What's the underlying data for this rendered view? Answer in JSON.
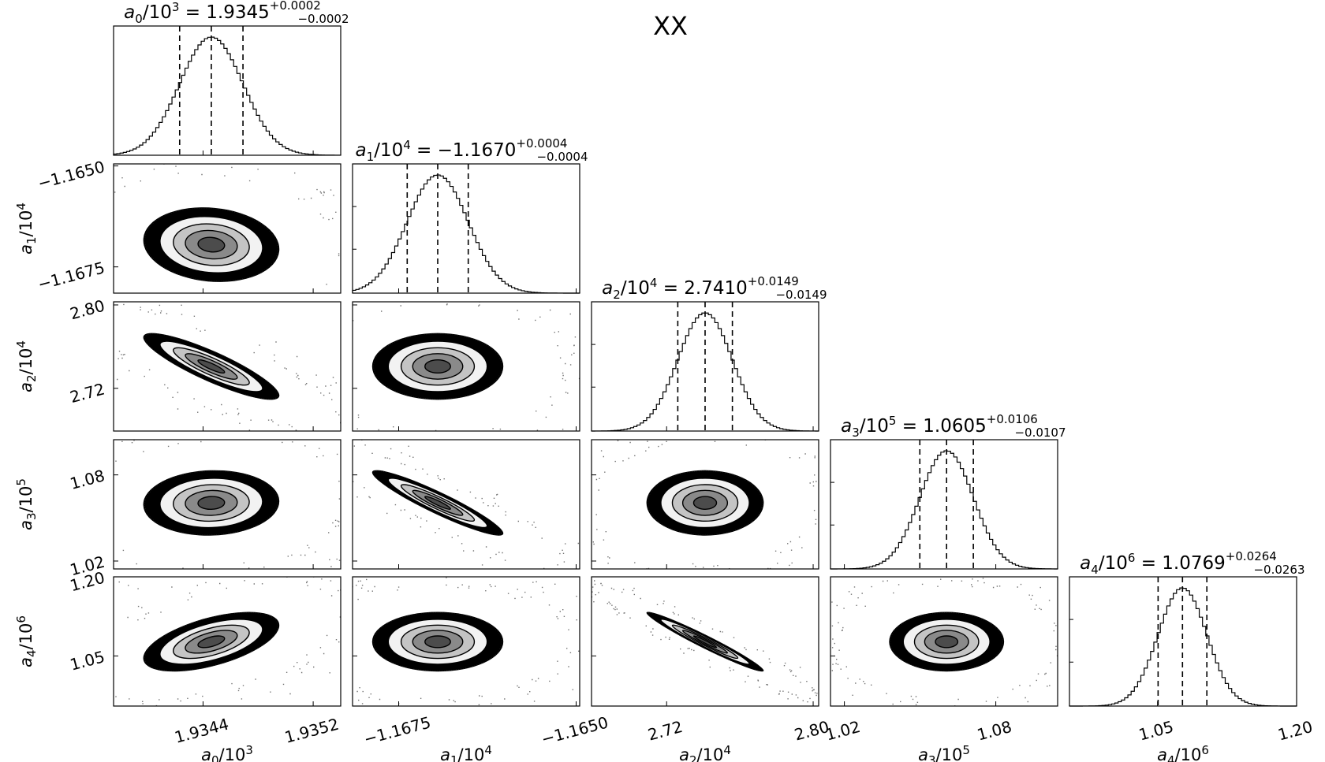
{
  "figure": {
    "title": "XX"
  },
  "chart_data": {
    "type": "corner",
    "title": "XX",
    "parameters": [
      {
        "id": "a0",
        "symbol": "a",
        "sub": "0",
        "scale_base": "10",
        "scale_exp": "3",
        "label": "a_0/10^3",
        "median": "1.9345",
        "err_plus": "+0.0002",
        "err_minus": "−0.0002",
        "median_value": 1.93446,
        "sigma": 0.00023,
        "range": [
          1.93375,
          1.9354
        ],
        "ticks": [
          1.9344,
          1.9352
        ],
        "tick_labels": [
          "1.9344",
          "1.9352"
        ]
      },
      {
        "id": "a1",
        "symbol": "a",
        "sub": "1",
        "scale_base": "10",
        "scale_exp": "4",
        "label": "a_1/10^4",
        "median": "−1.1670",
        "err_plus": "+0.0004",
        "err_minus": "−0.0004",
        "median_value": -1.16695,
        "sigma": 0.00043,
        "range": [
          -1.16815,
          -1.16495
        ],
        "ticks": [
          -1.1675,
          -1.165
        ],
        "tick_labels": [
          "−1.1675",
          "−1.1650"
        ]
      },
      {
        "id": "a2",
        "symbol": "a",
        "sub": "2",
        "scale_base": "10",
        "scale_exp": "4",
        "label": "a_2/10^4",
        "median": "2.7410",
        "err_plus": "+0.0149",
        "err_minus": "−0.0149",
        "median_value": 2.741,
        "sigma": 0.0149,
        "range": [
          2.679,
          2.803
        ],
        "ticks": [
          2.72,
          2.8
        ],
        "tick_labels": [
          "2.72",
          "2.80"
        ]
      },
      {
        "id": "a3",
        "symbol": "a",
        "sub": "3",
        "scale_base": "10",
        "scale_exp": "5",
        "label": "a_3/10^5",
        "median": "1.0605",
        "err_plus": "+0.0106",
        "err_minus": "−0.0107",
        "median_value": 1.0605,
        "sigma": 0.0106,
        "range": [
          1.0145,
          1.1045
        ],
        "ticks": [
          1.02,
          1.08
        ],
        "tick_labels": [
          "1.02",
          "1.08"
        ]
      },
      {
        "id": "a4",
        "symbol": "a",
        "sub": "4",
        "scale_base": "10",
        "scale_exp": "6",
        "label": "a_4/10^6",
        "median": "1.0769",
        "err_plus": "+0.0264",
        "err_minus": "−0.0263",
        "median_value": 1.0769,
        "sigma": 0.0263,
        "range": [
          0.955,
          1.2
        ],
        "ticks": [
          1.05,
          1.2
        ],
        "tick_labels": [
          "1.05",
          "1.20"
        ]
      }
    ],
    "correlations": [
      {
        "pair": [
          "a0",
          "a1"
        ],
        "rho": -0.12
      },
      {
        "pair": [
          "a0",
          "a2"
        ],
        "rho": -0.87
      },
      {
        "pair": [
          "a0",
          "a3"
        ],
        "rho": 0.05
      },
      {
        "pair": [
          "a0",
          "a4"
        ],
        "rho": 0.55
      },
      {
        "pair": [
          "a1",
          "a2"
        ],
        "rho": 0.0
      },
      {
        "pair": [
          "a1",
          "a3"
        ],
        "rho": -0.93
      },
      {
        "pair": [
          "a1",
          "a4"
        ],
        "rho": 0.0
      },
      {
        "pair": [
          "a2",
          "a3"
        ],
        "rho": 0.0
      },
      {
        "pair": [
          "a2",
          "a4"
        ],
        "rho": -0.97
      },
      {
        "pair": [
          "a3",
          "a4"
        ],
        "rho": 0.0
      }
    ],
    "quantile_lines": [
      0.16,
      0.5,
      0.84
    ],
    "contour_levels_sigma": [
      0.5,
      1.0,
      1.5,
      2.0
    ]
  }
}
